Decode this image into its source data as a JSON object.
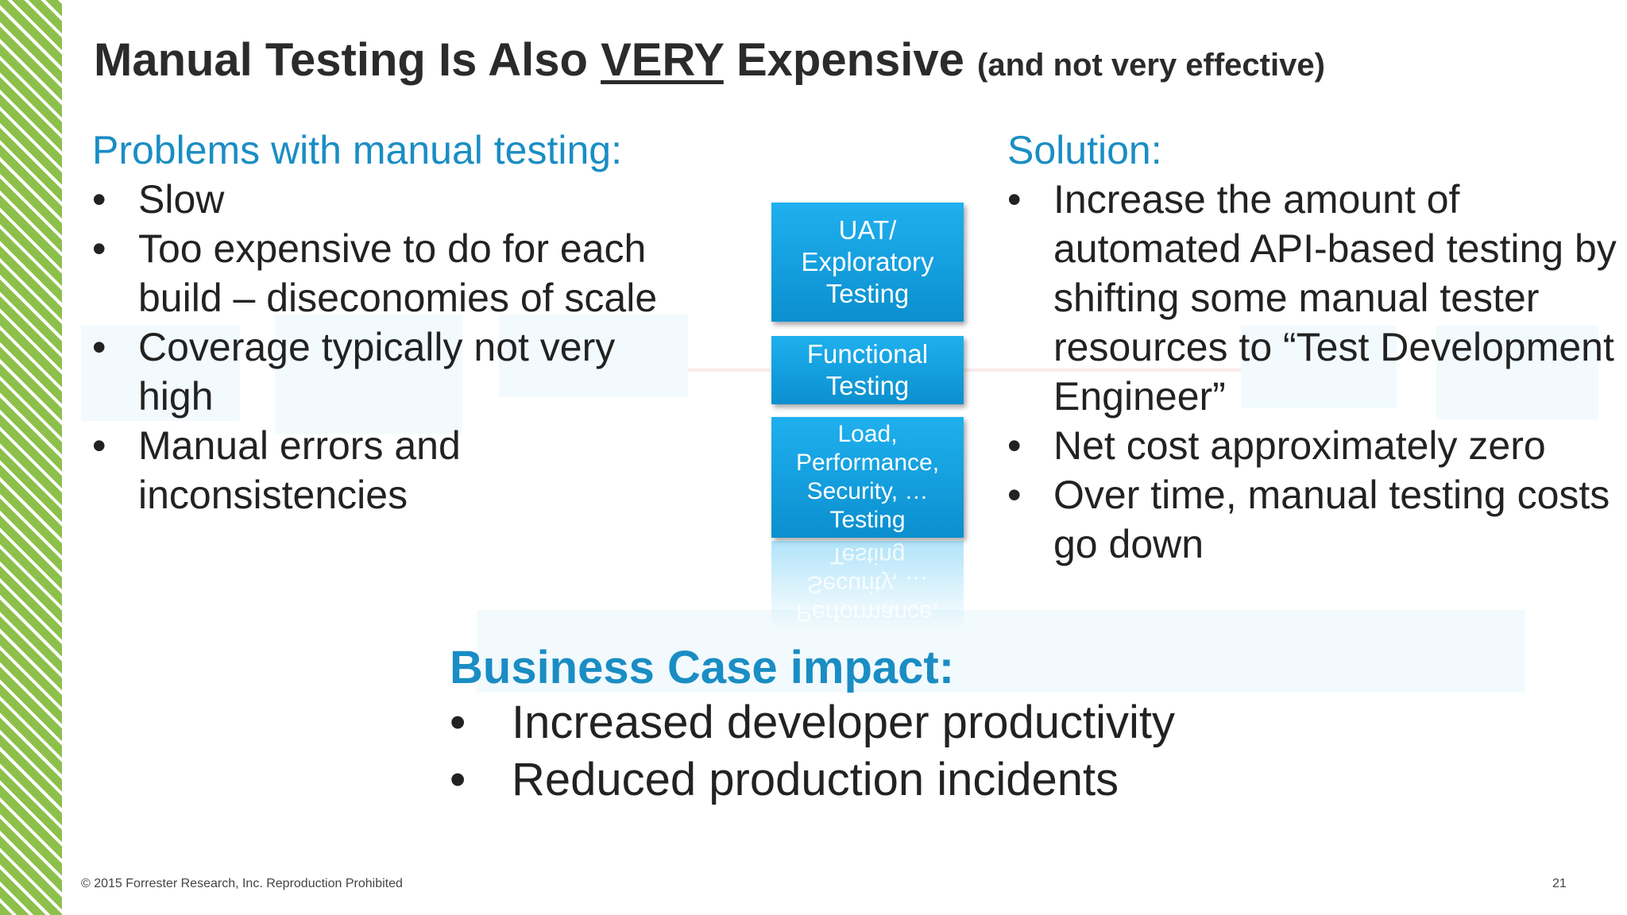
{
  "title": {
    "prefix": "Manual Testing Is Also ",
    "emphasis": "VERY",
    "suffix": " Expensive",
    "subtitle": "(and not very effective)"
  },
  "problems": {
    "heading": "Problems with manual testing:",
    "items": [
      {
        "bullet": "•",
        "text": "Slow"
      },
      {
        "bullet": "•",
        "text": "Too expensive to do for each build – diseconomies of scale"
      },
      {
        "bullet": "•",
        "text": "Coverage typically not very high"
      },
      {
        "bullet": "•",
        "text": "Manual errors and inconsistencies"
      }
    ]
  },
  "testing_boxes": {
    "uat": "UAT/ Exploratory Testing",
    "functional": "Functional Testing",
    "load": "Load, Performance, Security, … Testing"
  },
  "solution": {
    "heading": "Solution:",
    "items": [
      {
        "bullet": "•",
        "text": "Increase the amount of automated API-based testing by shifting some manual tester resources to “Test Development Engineer”"
      },
      {
        "bullet": "•",
        "text": "Net cost approximately zero"
      },
      {
        "bullet": "•",
        "text": "Over time, manual testing costs go down"
      }
    ]
  },
  "business_case": {
    "heading": "Business Case impact:",
    "items": [
      {
        "bullet": "•",
        "text": "Increased developer productivity"
      },
      {
        "bullet": "•",
        "text": "Reduced production incidents"
      }
    ]
  },
  "footer": {
    "copyright": "© 2015 Forrester Research, Inc. Reproduction Prohibited",
    "page_number": "21"
  },
  "colors": {
    "accent_blue": "#1a8dc4",
    "box_blue": "#1fb0ee",
    "stripe_green": "#8cc04b"
  }
}
